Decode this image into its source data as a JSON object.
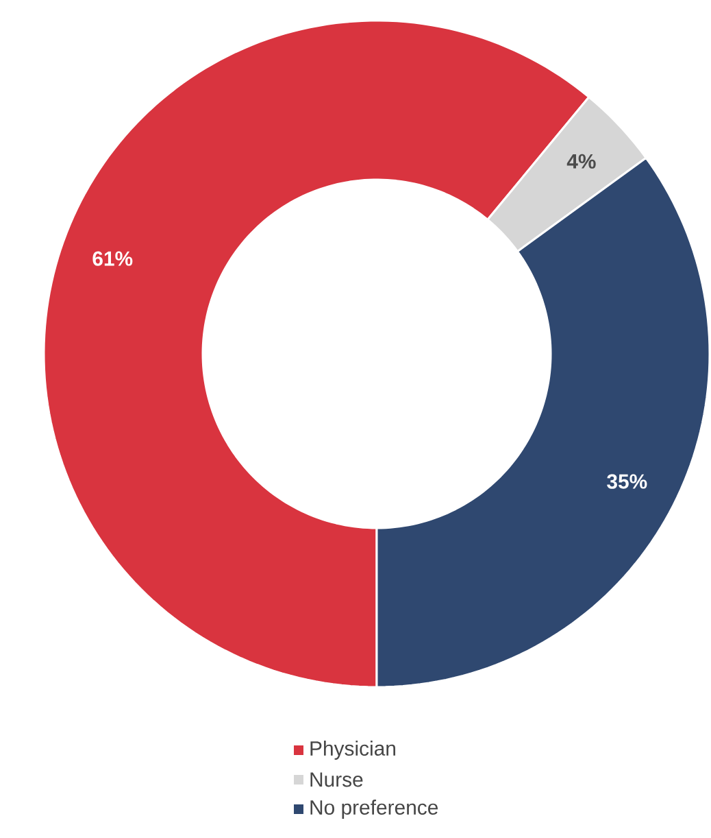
{
  "chart_data": {
    "type": "donut",
    "categories": [
      "Physician",
      "Nurse",
      "No preference"
    ],
    "values": [
      61,
      4,
      35
    ],
    "colors": [
      "#d9343f",
      "#d6d6d6",
      "#2f4870"
    ],
    "value_labels": [
      "61%",
      "4%",
      "35%"
    ],
    "legend": "bottom"
  }
}
